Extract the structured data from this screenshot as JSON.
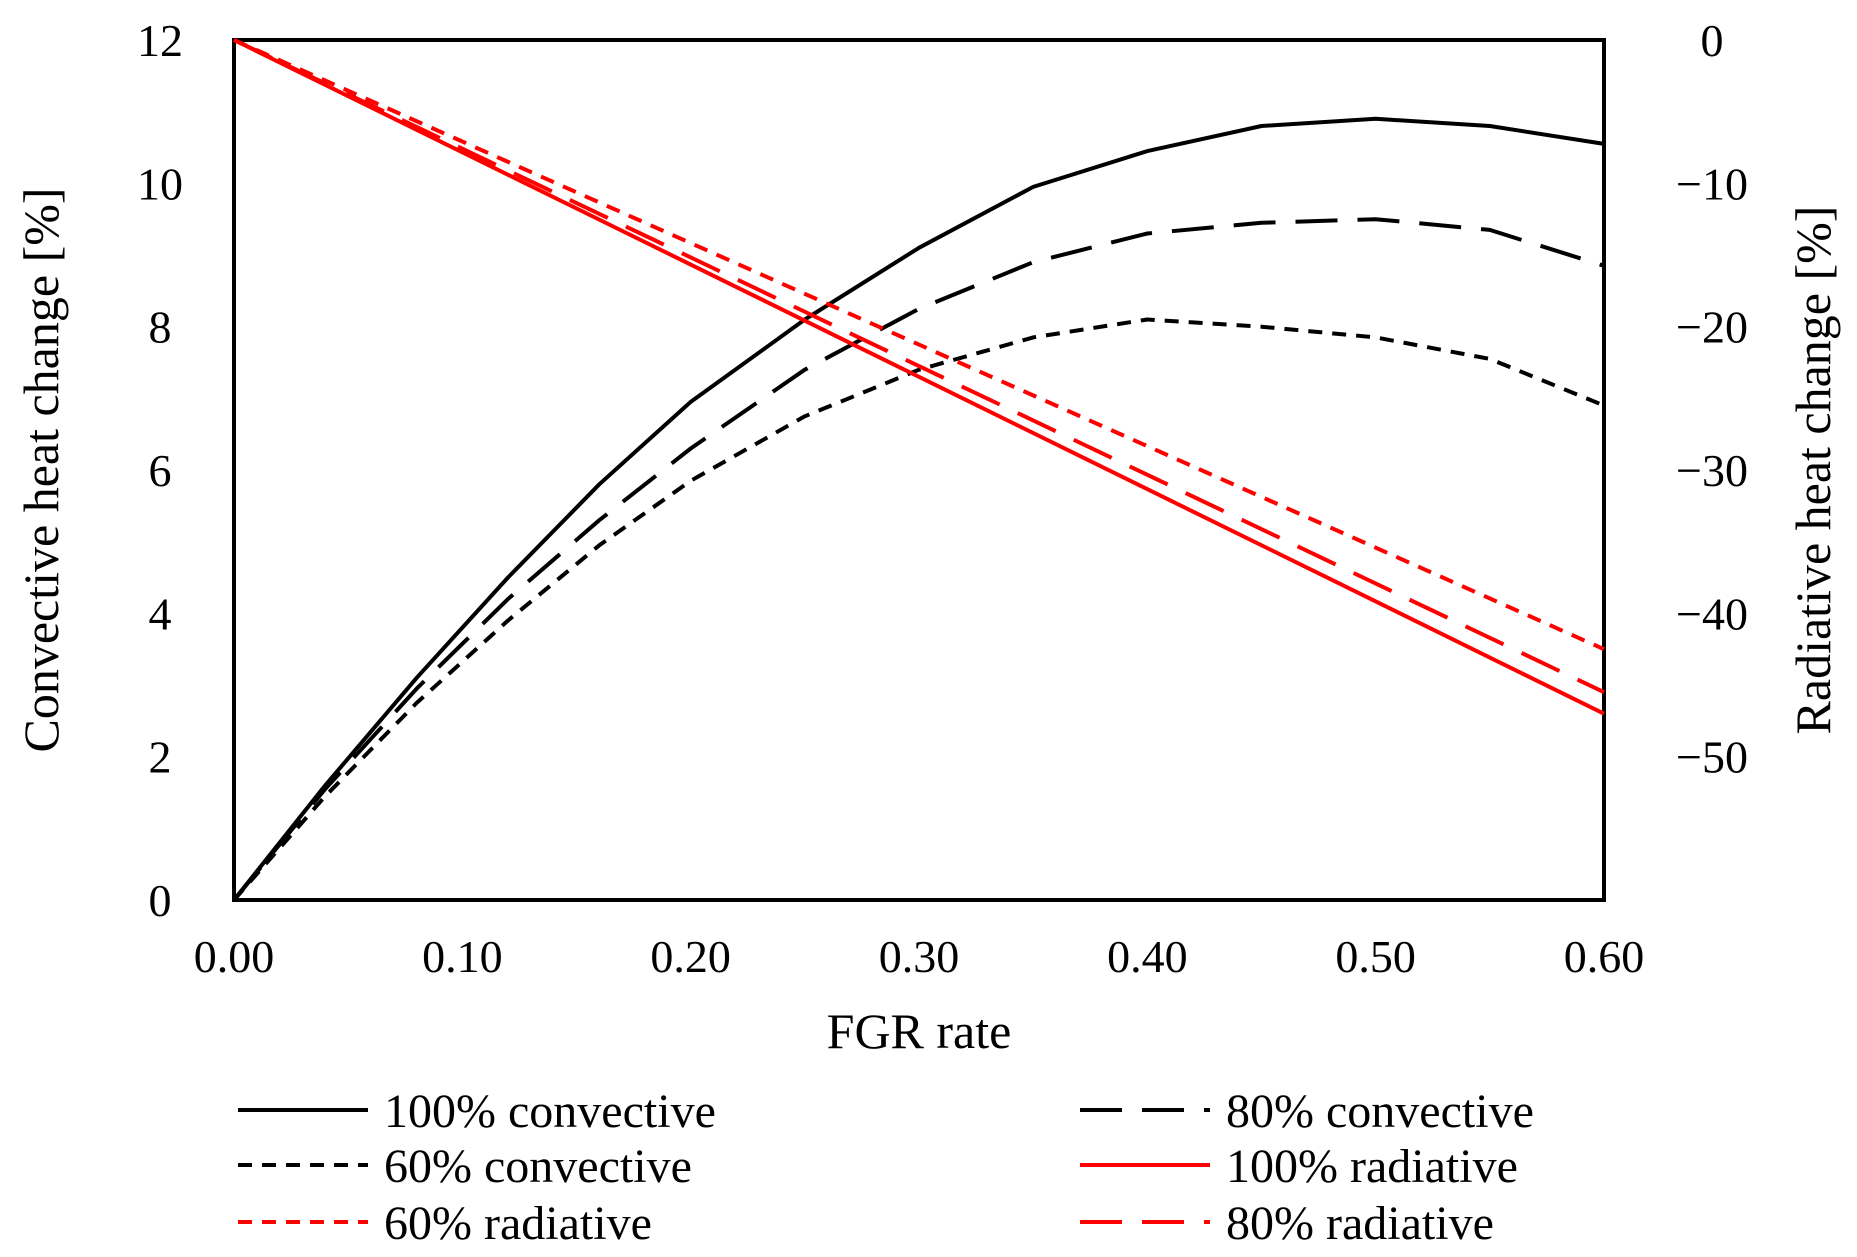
{
  "chart_data": {
    "type": "line",
    "title": "",
    "xlabel": "FGR rate",
    "ylabel_left": "Convective heat change [%]",
    "ylabel_right": "Radiative heat change [%]",
    "xlim": [
      0,
      0.6
    ],
    "ylim_left": [
      0,
      12
    ],
    "ylim_right": [
      -60,
      0
    ],
    "x_ticks": [
      "0.00",
      "0.10",
      "0.20",
      "0.30",
      "0.40",
      "0.50",
      "0.60"
    ],
    "y_left_ticks": [
      "0",
      "2",
      "4",
      "6",
      "8",
      "10",
      "12"
    ],
    "y_right_ticks": [
      "0",
      "−10",
      "−20",
      "−30",
      "−40",
      "−50"
    ],
    "grid": false,
    "legend_position": "bottom",
    "series": [
      {
        "name": "100% convective",
        "axis": "left",
        "color": "#000000",
        "dash": "solid",
        "x": [
          0,
          0.04,
          0.08,
          0.12,
          0.16,
          0.2,
          0.25,
          0.3,
          0.35,
          0.4,
          0.45,
          0.5,
          0.55,
          0.6
        ],
        "y": [
          0,
          1.6,
          3.1,
          4.5,
          5.8,
          6.95,
          8.1,
          9.1,
          9.95,
          10.45,
          10.8,
          10.9,
          10.8,
          10.55
        ]
      },
      {
        "name": "80% convective",
        "axis": "left",
        "color": "#000000",
        "dash": "long",
        "x": [
          0,
          0.04,
          0.08,
          0.12,
          0.16,
          0.2,
          0.25,
          0.3,
          0.35,
          0.4,
          0.45,
          0.5,
          0.55,
          0.6
        ],
        "y": [
          0,
          1.55,
          2.95,
          4.2,
          5.3,
          6.3,
          7.4,
          8.25,
          8.9,
          9.3,
          9.45,
          9.5,
          9.35,
          8.85
        ]
      },
      {
        "name": "60% convective",
        "axis": "left",
        "color": "#000000",
        "dash": "short",
        "x": [
          0,
          0.04,
          0.08,
          0.12,
          0.16,
          0.2,
          0.25,
          0.3,
          0.35,
          0.4,
          0.45,
          0.5,
          0.55,
          0.6
        ],
        "y": [
          0,
          1.45,
          2.75,
          3.9,
          4.95,
          5.85,
          6.75,
          7.4,
          7.85,
          8.1,
          8.0,
          7.85,
          7.55,
          6.9
        ]
      },
      {
        "name": "100% radiative",
        "axis": "right",
        "color": "#ff0000",
        "dash": "solid",
        "x": [
          0,
          0.6
        ],
        "y": [
          0,
          -47
        ]
      },
      {
        "name": "60% radiative",
        "axis": "right",
        "color": "#ff0000",
        "dash": "short",
        "x": [
          0,
          0.6
        ],
        "y": [
          0,
          -42.5
        ]
      },
      {
        "name": "80% radiative",
        "axis": "right",
        "color": "#ff0000",
        "dash": "long",
        "x": [
          0,
          0.6
        ],
        "y": [
          0,
          -45.5
        ]
      }
    ]
  }
}
